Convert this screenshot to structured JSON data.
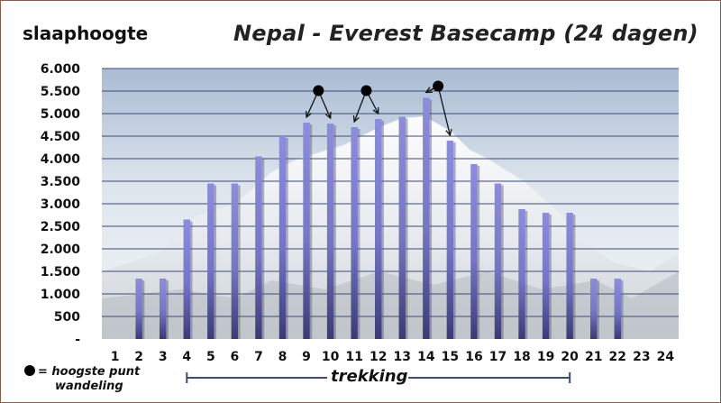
{
  "header": {
    "ylabel": "slaaphoogte",
    "title": "Nepal - Everest Basecamp (24 dagen)"
  },
  "legend": {
    "line1": "= hoogste punt",
    "line2": "wandeling"
  },
  "trek": {
    "label": "trekking",
    "from_day": 4,
    "to_day": 20
  },
  "colors": {
    "bar": "#8c8ce0",
    "bar_dark": "#3a3a78",
    "grid": "#3d4a78",
    "sky": "#b3c2d6"
  },
  "chart_data": {
    "type": "bar",
    "categories": [
      "1",
      "2",
      "3",
      "4",
      "5",
      "6",
      "7",
      "8",
      "9",
      "10",
      "11",
      "12",
      "13",
      "14",
      "15",
      "16",
      "17",
      "18",
      "19",
      "20",
      "21",
      "22",
      "23",
      "24"
    ],
    "series": [
      {
        "values": [
          0,
          1340,
          1340,
          2650,
          3450,
          3450,
          4050,
          4500,
          4800,
          4780,
          4700,
          4880,
          4930,
          5350,
          4400,
          3880,
          3450,
          2880,
          2800,
          2800,
          1340,
          1340,
          0,
          0
        ]
      }
    ],
    "yticks": [
      "-",
      "500",
      "1.000",
      "1.500",
      "2.000",
      "2.500",
      "3.000",
      "3.500",
      "4.000",
      "4.500",
      "5.000",
      "5.500",
      "6.000"
    ],
    "ylim": [
      0,
      6000
    ],
    "grid": true,
    "markers": [
      {
        "symbol": "highest point",
        "peak": 5550,
        "arrows_to_days": [
          9,
          10
        ]
      },
      {
        "symbol": "highest point",
        "peak": 5550,
        "arrows_to_days": [
          11,
          12
        ]
      },
      {
        "symbol": "highest point",
        "peak": 5650,
        "arrows_to_days": [
          14,
          15
        ]
      }
    ]
  }
}
